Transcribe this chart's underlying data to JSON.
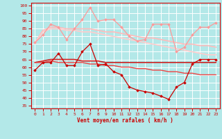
{
  "background_color": "#b3e8e8",
  "grid_color": "#ffffff",
  "xlabel": "Vent moyen/en rafales ( km/h )",
  "xlabel_color": "#cc0000",
  "ylabel_yticks": [
    35,
    40,
    45,
    50,
    55,
    60,
    65,
    70,
    75,
    80,
    85,
    90,
    95,
    100
  ],
  "xticks": [
    0,
    1,
    2,
    3,
    4,
    5,
    6,
    7,
    8,
    9,
    10,
    11,
    12,
    13,
    14,
    15,
    16,
    17,
    18,
    19,
    20,
    21,
    22,
    23
  ],
  "ylim": [
    33,
    102
  ],
  "xlim": [
    -0.5,
    23.5
  ],
  "lines": [
    {
      "y": [
        76,
        81,
        88,
        86,
        78,
        85,
        91,
        99,
        90,
        91,
        91,
        86,
        80,
        77,
        78,
        88,
        88,
        88,
        70,
        73,
        81,
        86,
        86,
        89
      ],
      "color": "#ff9999",
      "lw": 0.9,
      "marker": "D",
      "ms": 1.8,
      "zorder": 3
    },
    {
      "y": [
        76,
        84,
        86,
        86,
        85,
        85,
        85,
        85,
        84,
        83,
        83,
        82,
        81,
        80,
        79,
        79,
        78,
        77,
        76,
        75,
        75,
        74,
        74,
        73
      ],
      "color": "#ffbbbb",
      "lw": 1.2,
      "marker": null,
      "ms": 0,
      "zorder": 2
    },
    {
      "y": [
        76,
        83,
        85,
        85,
        84,
        84,
        83,
        83,
        82,
        81,
        80,
        79,
        78,
        77,
        76,
        75,
        74,
        73,
        72,
        71,
        70,
        69,
        68,
        68
      ],
      "color": "#ffcccc",
      "lw": 1.2,
      "marker": null,
      "ms": 0,
      "zorder": 2
    },
    {
      "y": [
        63,
        64,
        65,
        65,
        65,
        65,
        64,
        64,
        64,
        63,
        63,
        63,
        63,
        63,
        63,
        63,
        63,
        63,
        63,
        63,
        63,
        63,
        63,
        63
      ],
      "color": "#cc2222",
      "lw": 1.2,
      "marker": null,
      "ms": 0,
      "zorder": 2
    },
    {
      "y": [
        63,
        63,
        64,
        63,
        63,
        63,
        63,
        62,
        62,
        61,
        61,
        60,
        60,
        59,
        59,
        58,
        58,
        57,
        57,
        56,
        56,
        55,
        55,
        55
      ],
      "color": "#ee4444",
      "lw": 1.0,
      "marker": null,
      "ms": 0,
      "zorder": 2
    },
    {
      "y": [
        58,
        63,
        63,
        69,
        61,
        61,
        70,
        75,
        61,
        62,
        57,
        55,
        47,
        45,
        44,
        43,
        41,
        39,
        47,
        50,
        62,
        65,
        65,
        65
      ],
      "color": "#cc0000",
      "lw": 0.9,
      "marker": "D",
      "ms": 1.8,
      "zorder": 4
    }
  ]
}
